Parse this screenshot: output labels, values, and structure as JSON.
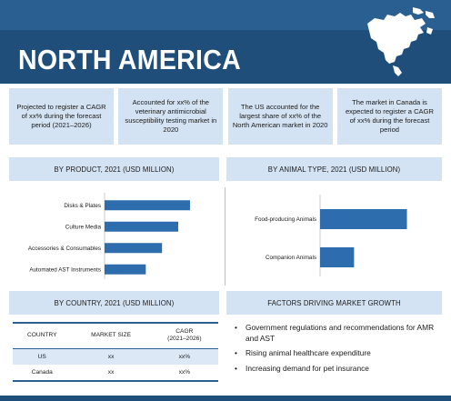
{
  "header": {
    "title": "NORTH AMERICA",
    "colors": {
      "dark": "#1f4e7a",
      "band": "#2a5f91",
      "light": "#d4e3f3",
      "bar": "#2e6dad"
    },
    "map_icon": "north-america-map-icon"
  },
  "stats": [
    {
      "text": "Projected to register a CAGR of xx% during the forecast period (2021–2026)"
    },
    {
      "text": "Accounted for xx% of the veterinary antimicrobial susceptibility testing market in 2020"
    },
    {
      "text": "The US accounted for the largest share of xx% of the North American market in 2020"
    },
    {
      "text": "The market in Canada is expected to register a CAGR of xx% during the forecast period"
    }
  ],
  "sections": {
    "product": "BY PRODUCT, 2021 (USD MILLION)",
    "animal": "BY ANIMAL TYPE, 2021 (USD MILLION)",
    "country": "BY COUNTRY, 2021 (USD MILLION)",
    "factors": "FACTORS DRIVING MARKET GROWTH"
  },
  "chart_data": [
    {
      "type": "bar",
      "orientation": "horizontal",
      "title": "BY PRODUCT, 2021 (USD MILLION)",
      "categories": [
        "Disks & Plates",
        "Culture Media",
        "Accessories & Consumables",
        "Automated AST Instruments"
      ],
      "values": [
        58,
        50,
        39,
        28
      ],
      "xlim": [
        0,
        100
      ],
      "grid": false,
      "legend": "none"
    },
    {
      "type": "bar",
      "orientation": "horizontal",
      "title": "BY ANIMAL TYPE, 2021 (USD MILLION)",
      "categories": [
        "Food-producing Animals",
        "Companion Animals"
      ],
      "values": [
        92,
        36
      ],
      "xlim": [
        0,
        130
      ],
      "grid": false,
      "legend": "none"
    }
  ],
  "country_table": {
    "headers": [
      "COUNTRY",
      "MARKET SIZE",
      "CAGR\n(2021–2026)"
    ],
    "rows": [
      [
        "US",
        "xx",
        "xx%"
      ],
      [
        "Canada",
        "xx",
        "xx%"
      ]
    ]
  },
  "factors": [
    "Government regulations and recommendations for AMR and AST",
    "Rising animal healthcare expenditure",
    "Increasing demand for pet insurance"
  ]
}
